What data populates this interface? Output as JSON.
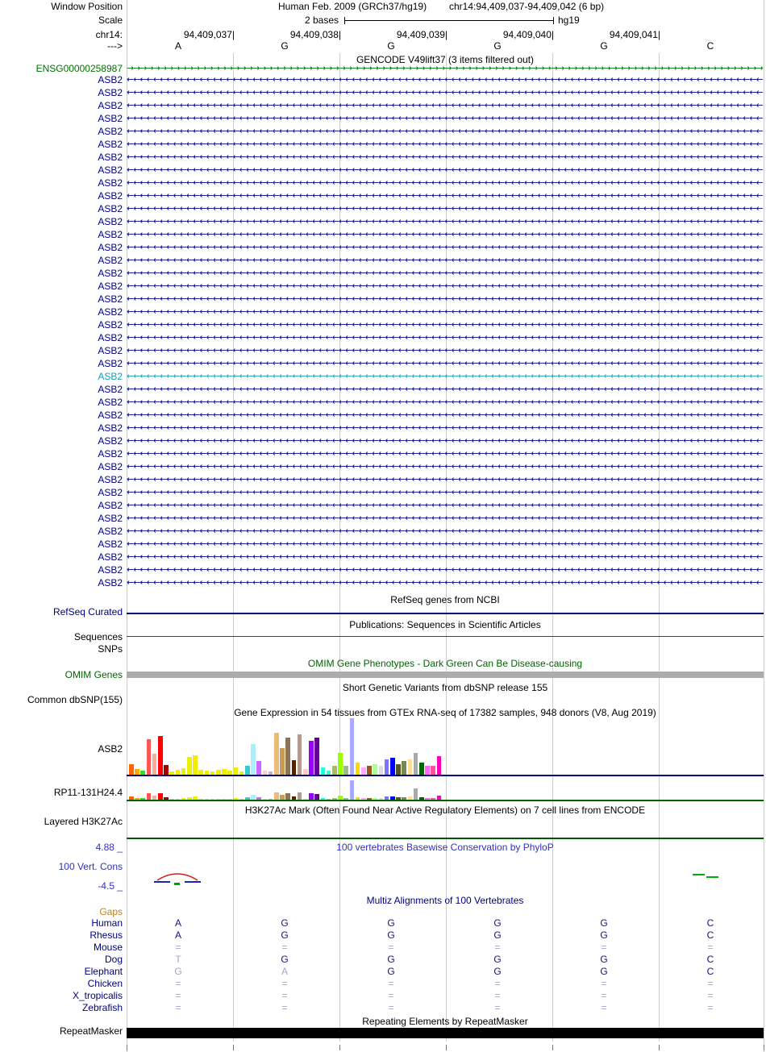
{
  "colors": {
    "navy": "#000080",
    "teal_transcript": "#1E9EB4",
    "gene_green": "#007200",
    "dark_green": "#006400",
    "cons_blue": "#3030C0",
    "gaps_orange": "#C08020",
    "guideline": "#BCD1E8",
    "base_dark": "#14147A",
    "base_light": "#9AA6CC",
    "omim_bar": "#ACACAC",
    "h3k27ac_green": "#005500",
    "phylop_red": "#D02020",
    "phylop_blue": "#2020C0",
    "phylop_green": "#00A000",
    "repeat_black": "#000000"
  },
  "ruler": {
    "window_position_label": "Window Position",
    "assembly_title": "Human Feb. 2009 (GRCh37/hg19)",
    "position_title": "chr14:94,409,037-94,409,042 (6 bp)",
    "scale_label": "Scale",
    "scale_text": "2 bases",
    "scale_genome": "hg19",
    "chrom_label": "chr14:",
    "coordinates": [
      "94,409,037",
      "94,409,038",
      "94,409,039",
      "94,409,040",
      "94,409,041"
    ],
    "strand_arrow": "--->",
    "bases": [
      "A",
      "G",
      "G",
      "G",
      "G",
      "C"
    ]
  },
  "gencode": {
    "header": "GENCODE V49lift37 (3 items filtered out)",
    "forward_gene": "ENSG00000258987",
    "reverse_gene_label": "ASB2",
    "reverse_row_count": 40,
    "teal_row_index": 23
  },
  "refseq": {
    "header": "RefSeq genes from NCBI",
    "label": "RefSeq Curated"
  },
  "publications": {
    "header": "Publications: Sequences in Scientific Articles",
    "label_sequences": "Sequences",
    "label_snps": "SNPs"
  },
  "omim": {
    "header": "OMIM Gene Phenotypes - Dark Green Can Be Disease-causing",
    "label": "OMIM Genes"
  },
  "dbsnp": {
    "header": "Short Genetic Variants from dbSNP release 155",
    "label": "Common dbSNP(155)"
  },
  "gtex": {
    "header": "Gene Expression in 54 tissues from GTEx RNA-seq of 17382 samples, 948 donors (V8, Aug 2019)",
    "gene1_label": "ASB2",
    "gene2_label": "RP11-131H24.4",
    "chart_data": {
      "type": "bar",
      "tissue_count": 54,
      "colors": [
        "#FF6600",
        "#FFAA00",
        "#33DD33",
        "#FF5555",
        "#FFAA99",
        "#FF0000",
        "#AA0000",
        "#EEEE00",
        "#EEEE00",
        "#EEEE00",
        "#EEEE00",
        "#EEEE00",
        "#EEEE00",
        "#EEEE00",
        "#EEEE00",
        "#EEEE00",
        "#EEEE00",
        "#EEEE00",
        "#EEEE00",
        "#EEEE00",
        "#33CCCC",
        "#AAEEFF",
        "#CC66FF",
        "#FFCCCC",
        "#CCAADD",
        "#EEBB77",
        "#CC9955",
        "#8B7355",
        "#552200",
        "#BB9988",
        "#FFCCCC",
        "#9900FF",
        "#660099",
        "#22FFDD",
        "#33FFC9",
        "#AABB66",
        "#99FF00",
        "#99BB88",
        "#AAAAFF",
        "#FFD700",
        "#FFAAFF",
        "#995522",
        "#AAFF99",
        "#DDDDDD",
        "#7777FF",
        "#0000FF",
        "#555522",
        "#778855",
        "#FFDD99",
        "#AAAAAA",
        "#006600",
        "#FF66FF",
        "#FF5599",
        "#FF00BB"
      ],
      "series": [
        {
          "name": "ASB2",
          "values": [
            13,
            7,
            5,
            44,
            26,
            48,
            12,
            4,
            6,
            8,
            22,
            24,
            6,
            5,
            4,
            6,
            7,
            5,
            9,
            4,
            11,
            38,
            17,
            5,
            4,
            52,
            33,
            46,
            18,
            50,
            7,
            42,
            46,
            9,
            5,
            11,
            27,
            11,
            70,
            15,
            9,
            11,
            13,
            11,
            19,
            21,
            13,
            17,
            19,
            27,
            15,
            11,
            11,
            23
          ]
        },
        {
          "name": "RP11-131H24.4",
          "values": [
            4,
            2,
            2,
            8,
            5,
            8,
            3,
            1,
            1,
            2,
            3,
            4,
            1,
            1,
            1,
            1,
            1,
            1,
            2,
            1,
            3,
            6,
            3,
            1,
            1,
            9,
            6,
            8,
            4,
            9,
            1,
            8,
            7,
            2,
            1,
            2,
            5,
            2,
            24,
            3,
            2,
            2,
            2,
            2,
            4,
            4,
            3,
            3,
            4,
            14,
            3,
            2,
            2,
            5
          ]
        }
      ]
    }
  },
  "h3k27ac": {
    "header": "H3K27Ac Mark (Often Found Near Active Regulatory Elements) on 7 cell lines from ENCODE",
    "label": "Layered H3K27Ac"
  },
  "conservation": {
    "header": "100 vertebrates Basewise Conservation by PhyloP",
    "label": "100 Vert. Cons",
    "max": "4.88 _",
    "min": "-4.5 _"
  },
  "multiz": {
    "header": "Multiz Alignments of 100 Vertebrates",
    "gaps_label": "Gaps",
    "species": [
      {
        "name": "Human",
        "bases": [
          "A",
          "G",
          "G",
          "G",
          "G",
          "C"
        ],
        "light": []
      },
      {
        "name": "Rhesus",
        "bases": [
          "A",
          "G",
          "G",
          "G",
          "G",
          "C"
        ],
        "light": []
      },
      {
        "name": "Mouse",
        "bases": [
          "=",
          "=",
          "=",
          "=",
          "=",
          "="
        ],
        "light": [
          0,
          1,
          2,
          3,
          4,
          5
        ]
      },
      {
        "name": "Dog",
        "bases": [
          "T",
          "G",
          "G",
          "G",
          "G",
          "C"
        ],
        "light": [
          0
        ]
      },
      {
        "name": "Elephant",
        "bases": [
          "G",
          "A",
          "G",
          "G",
          "G",
          "C"
        ],
        "light": [
          0,
          1
        ]
      },
      {
        "name": "Chicken",
        "bases": [
          "=",
          "=",
          "=",
          "=",
          "=",
          "="
        ],
        "light": [
          0,
          1,
          2,
          3,
          4,
          5
        ]
      },
      {
        "name": "X_tropicalis",
        "bases": [
          "=",
          "=",
          "=",
          "=",
          "=",
          "="
        ],
        "light": [
          0,
          1,
          2,
          3,
          4,
          5
        ]
      },
      {
        "name": "Zebrafish",
        "bases": [
          "=",
          "=",
          "=",
          "=",
          "=",
          "="
        ],
        "light": [
          0,
          1,
          2,
          3,
          4,
          5
        ]
      }
    ]
  },
  "repeatmasker": {
    "header": "Repeating Elements by RepeatMasker",
    "label": "RepeatMasker"
  }
}
